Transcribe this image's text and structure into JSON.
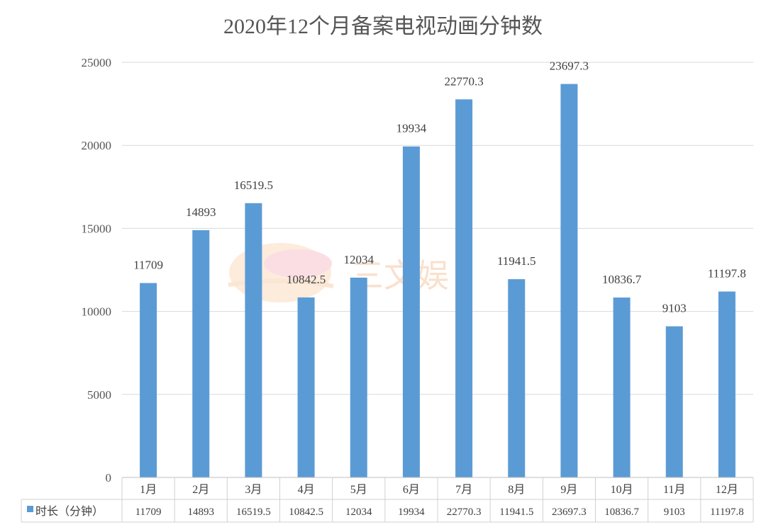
{
  "chart_data": {
    "type": "bar",
    "title": "2020年12个月备案电视动画分钟数",
    "categories": [
      "1月",
      "2月",
      "3月",
      "4月",
      "5月",
      "6月",
      "7月",
      "8月",
      "9月",
      "10月",
      "11月",
      "12月"
    ],
    "series": [
      {
        "name": "时长（分钟）",
        "values": [
          11709,
          14893,
          16519.5,
          10842.5,
          12034,
          19934,
          22770.3,
          11941.5,
          23697.3,
          10836.7,
          9103,
          11197.8
        ],
        "labels": [
          "11709",
          "14893",
          "16519.5",
          "10842.5",
          "12034",
          "19934",
          "22770.3",
          "11941.5",
          "23697.3",
          "10836.7",
          "9103",
          "11197.8"
        ]
      }
    ],
    "y_ticks": [
      "0",
      "5000",
      "10000",
      "15000",
      "20000",
      "25000"
    ],
    "ylim": [
      0,
      25000
    ],
    "grid": true,
    "legend": "data-table-left",
    "colors": {
      "bar": "#5b9bd5",
      "grid": "#d9d9d9"
    }
  },
  "watermark": {
    "text": "三文娱"
  }
}
